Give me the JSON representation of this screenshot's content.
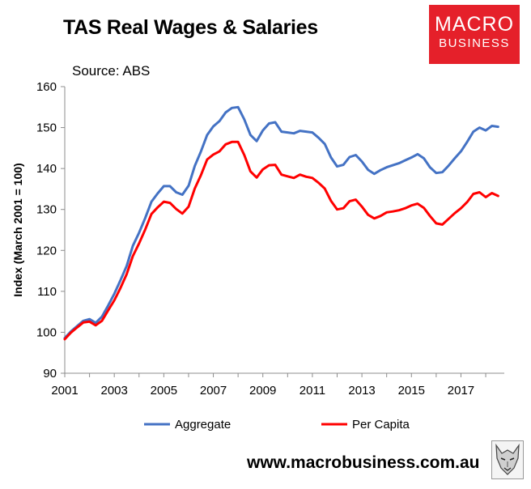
{
  "header": {
    "title": "TAS Real Wages & Salaries",
    "source": "Source: ABS",
    "logo_line1": "MACRO",
    "logo_line2": "BUSINESS",
    "website": "www.macrobusiness.com.au"
  },
  "colors": {
    "aggregate": "#4472c4",
    "per_capita": "#ff0000",
    "logo_bg": "#e5202a"
  },
  "chart_data": {
    "type": "line",
    "title": "TAS Real Wages & Salaries",
    "xlabel": "",
    "ylabel": "Index (March 2001 = 100)",
    "xlim": [
      2001.0,
      2018.75
    ],
    "ylim": [
      90,
      160
    ],
    "yticks": [
      90,
      100,
      110,
      120,
      130,
      140,
      150,
      160
    ],
    "xticks": [
      2001,
      2003,
      2005,
      2007,
      2009,
      2011,
      2013,
      2015,
      2017
    ],
    "grid": false,
    "legend": "bottom",
    "x": [
      2001.0,
      2001.25,
      2001.5,
      2001.75,
      2002.0,
      2002.25,
      2002.5,
      2002.75,
      2003.0,
      2003.25,
      2003.5,
      2003.75,
      2004.0,
      2004.25,
      2004.5,
      2004.75,
      2005.0,
      2005.25,
      2005.5,
      2005.75,
      2006.0,
      2006.25,
      2006.5,
      2006.75,
      2007.0,
      2007.25,
      2007.5,
      2007.75,
      2008.0,
      2008.25,
      2008.5,
      2008.75,
      2009.0,
      2009.25,
      2009.5,
      2009.75,
      2010.0,
      2010.25,
      2010.5,
      2010.75,
      2011.0,
      2011.25,
      2011.5,
      2011.75,
      2012.0,
      2012.25,
      2012.5,
      2012.75,
      2013.0,
      2013.25,
      2013.5,
      2013.75,
      2014.0,
      2014.25,
      2014.5,
      2014.75,
      2015.0,
      2015.25,
      2015.5,
      2015.75,
      2016.0,
      2016.25,
      2016.5,
      2016.75,
      2017.0,
      2017.25,
      2017.5,
      2017.75,
      2018.0,
      2018.25,
      2018.5
    ],
    "series": [
      {
        "name": "Aggregate",
        "color": "#4472c4",
        "values": [
          98.6,
          100.2,
          101.5,
          102.8,
          103.2,
          102.3,
          103.8,
          106.5,
          109.4,
          112.7,
          116.2,
          121.1,
          124.3,
          127.9,
          131.9,
          133.9,
          135.7,
          135.7,
          134.2,
          133.6,
          135.8,
          140.6,
          144.2,
          148.2,
          150.3,
          151.6,
          153.7,
          154.8,
          155.0,
          152.0,
          148.2,
          146.7,
          149.3,
          151.0,
          151.3,
          149.0,
          148.8,
          148.6,
          149.2,
          149.0,
          148.8,
          147.5,
          146.0,
          142.7,
          140.5,
          140.9,
          142.8,
          143.3,
          141.7,
          139.7,
          138.7,
          139.6,
          140.3,
          140.8,
          141.3,
          142.0,
          142.7,
          143.5,
          142.5,
          140.3,
          138.9,
          139.1,
          140.7,
          142.5,
          144.2,
          146.5,
          149.0,
          150.0,
          149.3,
          150.4,
          150.2
        ]
      },
      {
        "name": "Per Capita",
        "color": "#ff0000",
        "values": [
          98.3,
          99.9,
          101.2,
          102.4,
          102.6,
          101.7,
          102.8,
          105.3,
          107.8,
          110.8,
          114.2,
          118.6,
          121.7,
          125.1,
          128.9,
          130.5,
          131.9,
          131.6,
          130.1,
          129.0,
          130.7,
          135.1,
          138.4,
          142.2,
          143.4,
          144.2,
          145.9,
          146.5,
          146.5,
          143.3,
          139.3,
          137.8,
          139.8,
          140.8,
          140.9,
          138.5,
          138.1,
          137.7,
          138.5,
          138.0,
          137.7,
          136.5,
          135.1,
          132.1,
          130.0,
          130.3,
          132.0,
          132.4,
          130.7,
          128.7,
          127.8,
          128.4,
          129.3,
          129.5,
          129.8,
          130.3,
          131.0,
          131.4,
          130.4,
          128.4,
          126.6,
          126.3,
          127.7,
          129.1,
          130.3,
          131.8,
          133.8,
          134.2,
          133.0,
          134.0,
          133.3
        ]
      }
    ]
  }
}
